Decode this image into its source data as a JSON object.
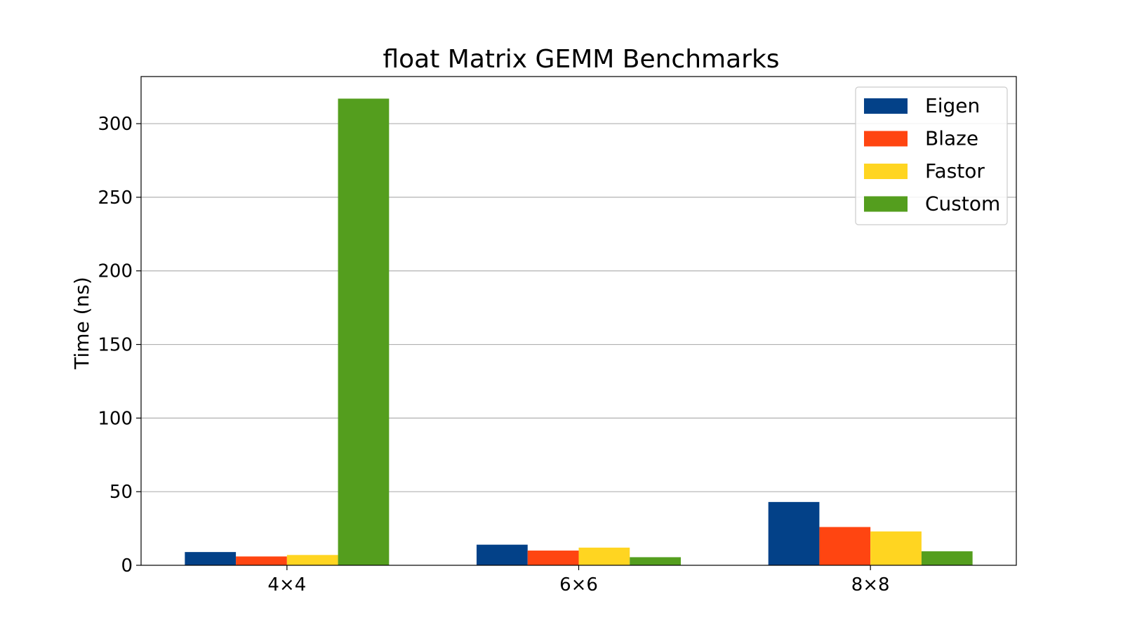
{
  "chart_data": {
    "type": "bar",
    "title": "float Matrix GEMM Benchmarks",
    "xlabel": "",
    "ylabel": "Time (ns)",
    "categories": [
      "4×4",
      "6×6",
      "8×8"
    ],
    "ylim": [
      0,
      332
    ],
    "yticks": [
      0,
      50,
      100,
      150,
      200,
      250,
      300
    ],
    "grid": "y",
    "legend_position": "top-right",
    "series": [
      {
        "name": "Eigen",
        "color": "#034188",
        "values": [
          9,
          14,
          43
        ]
      },
      {
        "name": "Blaze",
        "color": "#FF4511",
        "values": [
          6,
          10,
          26
        ]
      },
      {
        "name": "Fastor",
        "color": "#FFD521",
        "values": [
          7,
          12,
          23
        ]
      },
      {
        "name": "Custom",
        "color": "#549E1E",
        "values": [
          317,
          5.5,
          9.5
        ]
      }
    ]
  }
}
